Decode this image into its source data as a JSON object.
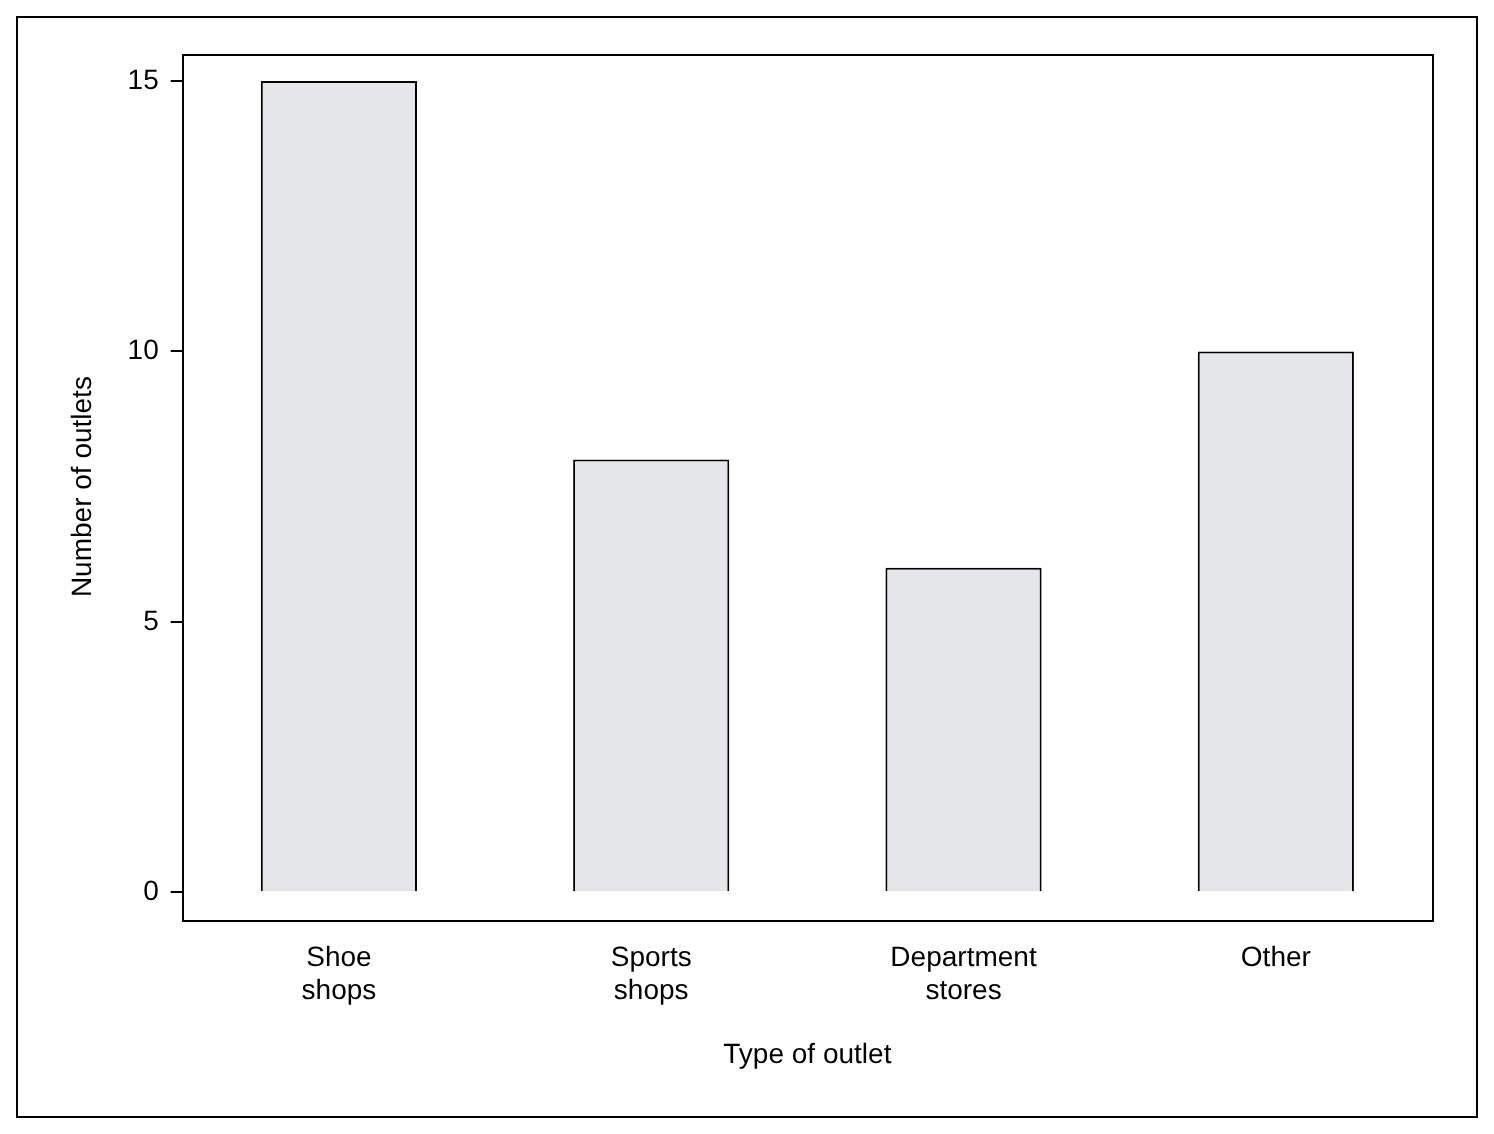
{
  "chart_data": {
    "type": "bar",
    "categories": [
      "Shoe shops",
      "Sports shops",
      "Department stores",
      "Other"
    ],
    "values": [
      15,
      8,
      6,
      10
    ],
    "color": "#e5e6e8",
    "xlabel": "Type of outlet",
    "ylabel": "Number of outlets",
    "ylim": [
      -0.5,
      15.5
    ],
    "yticks": [
      0,
      5,
      10,
      15
    ],
    "grid": false,
    "legend": false
  }
}
